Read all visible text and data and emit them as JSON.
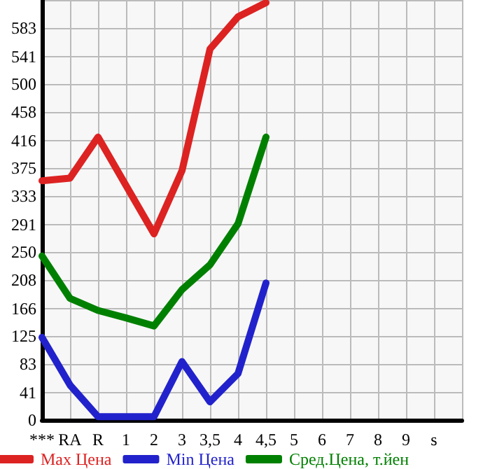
{
  "chart_data": {
    "type": "line",
    "categories": [
      "***",
      "RA",
      "R",
      "1",
      "2",
      "3",
      "3,5",
      "4",
      "4,5",
      "5",
      "6",
      "7",
      "8",
      "9",
      "s",
      null
    ],
    "series": [
      {
        "name": "Max Цена",
        "color": "#dd2222",
        "values": [
          356,
          360,
          421,
          349,
          277,
          371,
          552,
          600,
          621,
          null,
          null,
          null,
          null,
          null,
          null,
          null
        ]
      },
      {
        "name": "Min Цена",
        "color": "#2222cc",
        "values": [
          123,
          52,
          5,
          5,
          5,
          87,
          27,
          69,
          204,
          null,
          null,
          null,
          null,
          null,
          null,
          null
        ]
      },
      {
        "name": "Сред.Цена, т.йен",
        "color": "#008000",
        "values": [
          244,
          181,
          163,
          152,
          140,
          194,
          231,
          292,
          421,
          null,
          null,
          null,
          null,
          null,
          null,
          null
        ]
      }
    ],
    "ylim": [
      0,
      625
    ],
    "yticks": [
      0,
      41,
      83,
      125,
      166,
      208,
      250,
      291,
      333,
      375,
      416,
      458,
      500,
      541,
      583,
      {
        "value": 625,
        "label": null
      }
    ],
    "grid": true,
    "legend": "bottom",
    "marker": "none",
    "line_style": "solid"
  }
}
